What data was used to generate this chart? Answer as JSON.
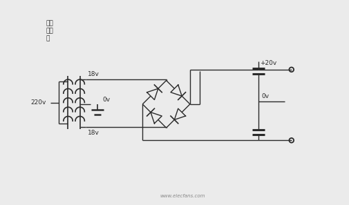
{
  "bg_color": "#ebebeb",
  "line_color": "#2a2a2a",
  "fig_width": 5.05,
  "fig_height": 2.97,
  "dpi": 100,
  "text_220v": "220v",
  "text_0v_left": "0v",
  "text_0v_right": "0v",
  "text_18v_top": "18v",
  "text_18v_bot": "18v",
  "text_20v": "+20v",
  "text_dual": "双电\n源输\n出",
  "watermark": "www.elecfans.com",
  "xlim": [
    0,
    10.5
  ],
  "ylim": [
    0,
    6.2
  ]
}
